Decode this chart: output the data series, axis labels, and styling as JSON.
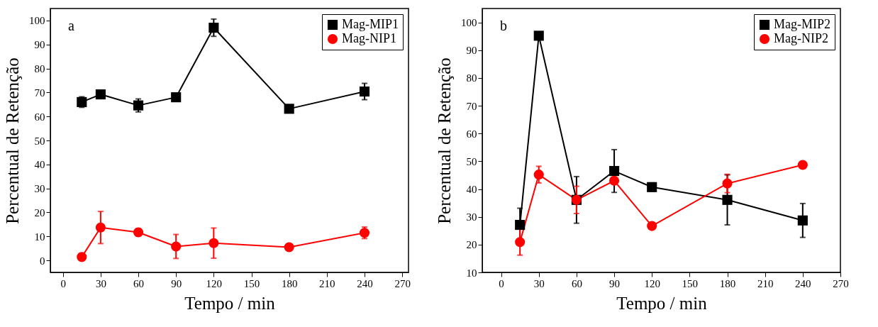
{
  "chart_data": [
    {
      "type": "line",
      "annotations": [
        "a"
      ],
      "xlabel": "Tempo / min",
      "ylabel": "Percentual de Retenção",
      "x": [
        15,
        30,
        60,
        90,
        120,
        180,
        240
      ],
      "xlim": [
        -10,
        275
      ],
      "xticks": [
        0,
        30,
        60,
        90,
        120,
        150,
        180,
        210,
        240,
        270
      ],
      "ylim": [
        -5,
        105
      ],
      "yticks": [
        0,
        10,
        20,
        30,
        40,
        50,
        60,
        70,
        80,
        90,
        100
      ],
      "grid": false,
      "legend": "top right",
      "series": [
        {
          "name": "Mag-MIP1",
          "color": "#000000",
          "marker": "square",
          "values": [
            66,
            69.2,
            64.6,
            68,
            97,
            63.2,
            70.4
          ],
          "errors": [
            2.2,
            1.5,
            2.7,
            1.5,
            3.6,
            1.2,
            3.4
          ]
        },
        {
          "name": "Mag-NIP1",
          "color": "#ff0000",
          "marker": "circle",
          "values": [
            1.4,
            13.7,
            11.7,
            5.8,
            7.2,
            5.5,
            11.5
          ],
          "errors": [
            1.5,
            6.7,
            1.5,
            5,
            6.3,
            1.2,
            2.4
          ]
        }
      ]
    },
    {
      "type": "line",
      "annotations": [
        "b"
      ],
      "xlabel": "Tempo / min",
      "ylabel": "Percentual de Retenção",
      "x": [
        15,
        30,
        60,
        90,
        120,
        180,
        240
      ],
      "xlim": [
        -15,
        270
      ],
      "xticks": [
        0,
        30,
        60,
        90,
        120,
        150,
        180,
        210,
        240,
        270
      ],
      "ylim": [
        10,
        105
      ],
      "yticks": [
        10,
        20,
        30,
        40,
        50,
        60,
        70,
        80,
        90,
        100
      ],
      "grid": false,
      "legend": "top right",
      "series": [
        {
          "name": "Mag-MIP2",
          "color": "#000000",
          "marker": "square",
          "values": [
            27.1,
            95.2,
            36.1,
            46.5,
            40.7,
            36.1,
            28.7
          ],
          "errors": [
            6,
            null,
            8.4,
            7.7,
            1.5,
            9,
            6.1
          ]
        },
        {
          "name": "Mag-NIP2",
          "color": "#ff0000",
          "marker": "circle",
          "values": [
            20.9,
            45.2,
            36.1,
            43,
            26.7,
            42,
            48.7
          ],
          "errors": [
            4.7,
            3,
            4.9,
            null,
            null,
            3.3,
            null
          ]
        }
      ]
    }
  ]
}
